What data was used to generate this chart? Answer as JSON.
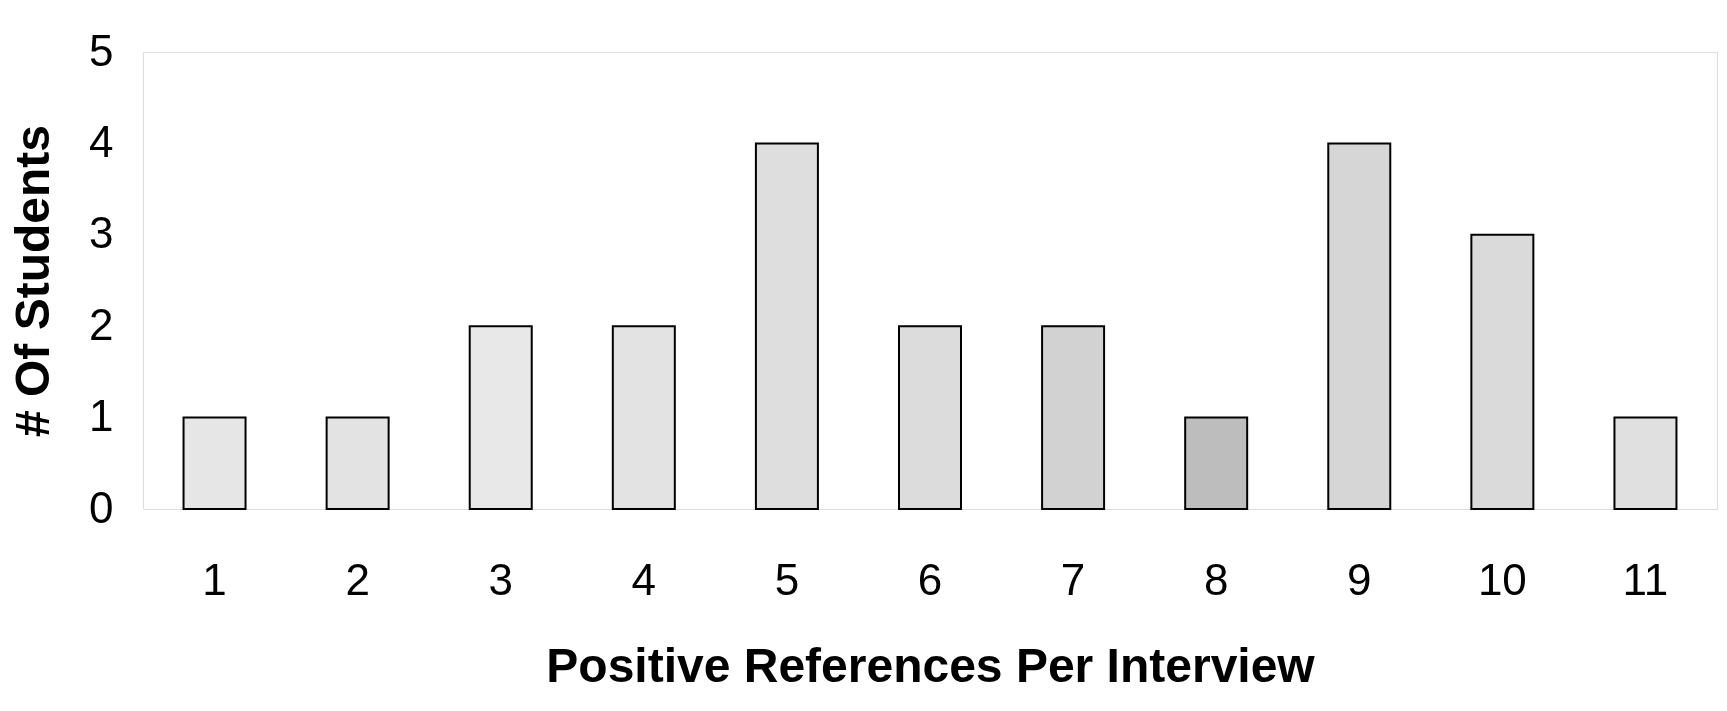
{
  "chart_data": {
    "type": "bar",
    "xlabel": "Positive References Per Interview",
    "ylabel": "# Of Students",
    "categories": [
      "1",
      "2",
      "3",
      "4",
      "5",
      "6",
      "7",
      "8",
      "9",
      "10",
      "11"
    ],
    "values": [
      1,
      1,
      2,
      2,
      4,
      2,
      2,
      1,
      4,
      3,
      1
    ],
    "colors": [
      "#e6e6e6",
      "#e3e3e3",
      "#e8e8e8",
      "#e3e3e3",
      "#dedede",
      "#dcdcdc",
      "#d2d2d2",
      "#bdbdbd",
      "#d6d6d6",
      "#dadada",
      "#e0e0e0"
    ],
    "ylim": [
      0,
      5
    ],
    "yticks": [
      0,
      1,
      2,
      3,
      4,
      5
    ],
    "grid": false
  }
}
